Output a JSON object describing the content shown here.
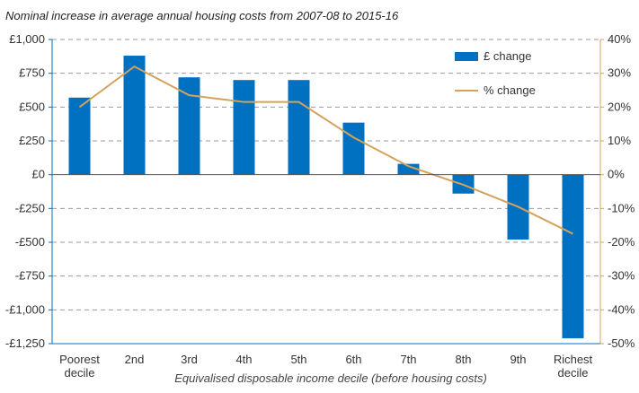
{
  "chart_data": {
    "type": "bar",
    "title": "Nominal increase in average annual housing costs from 2007-08 to 2015-16",
    "xlabel": "Equivalised disposable income decile (before housing costs)",
    "categories": [
      [
        "Poorest",
        "decile"
      ],
      [
        "2nd"
      ],
      [
        "3rd"
      ],
      [
        "4th"
      ],
      [
        "5th"
      ],
      [
        "6th"
      ],
      [
        "7th"
      ],
      [
        "8th"
      ],
      [
        "9th"
      ],
      [
        "Richest",
        "decile"
      ]
    ],
    "series": [
      {
        "name": "£ change",
        "type": "bar",
        "axis": "left",
        "color": "#0070C0",
        "values": [
          570,
          880,
          720,
          700,
          700,
          385,
          80,
          -140,
          -480,
          -1210
        ]
      },
      {
        "name": "% change",
        "type": "line",
        "axis": "right",
        "color": "#D4A25A",
        "values": [
          20,
          32,
          23.5,
          21.5,
          21.5,
          11,
          2.5,
          -3,
          -9.5,
          -17.5
        ]
      }
    ],
    "left_axis": {
      "ylim": [
        -1250,
        1000
      ],
      "ticks": [
        1000,
        750,
        500,
        250,
        0,
        -250,
        -500,
        -750,
        -1000,
        -1250
      ],
      "tick_labels": [
        "£1,000",
        "£750",
        "£500",
        "£250",
        "£0",
        "-£250",
        "-£500",
        "-£750",
        "-£1,000",
        "-£1,250"
      ]
    },
    "right_axis": {
      "ylim": [
        -50,
        40
      ],
      "ticks": [
        40,
        30,
        20,
        10,
        0,
        -10,
        -20,
        -30,
        -40,
        -50
      ],
      "tick_labels": [
        "40%",
        "30%",
        "20%",
        "10%",
        "0%",
        "-10%",
        "-20%",
        "-30%",
        "-40%",
        "-50%"
      ]
    },
    "grid": true,
    "legend_position": "top-right"
  }
}
